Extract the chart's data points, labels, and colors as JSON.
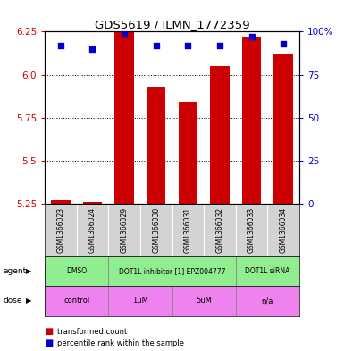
{
  "title": "GDS5619 / ILMN_1772359",
  "samples": [
    "GSM1366023",
    "GSM1366024",
    "GSM1366029",
    "GSM1366030",
    "GSM1366031",
    "GSM1366032",
    "GSM1366033",
    "GSM1366034"
  ],
  "bar_values": [
    5.27,
    5.26,
    6.25,
    5.93,
    5.84,
    6.05,
    6.22,
    6.12
  ],
  "percentile_values": [
    92,
    90,
    99,
    92,
    92,
    92,
    97,
    93
  ],
  "ylim": [
    5.25,
    6.25
  ],
  "yticks": [
    5.25,
    5.5,
    5.75,
    6.0,
    6.25
  ],
  "right_yticks": [
    0,
    25,
    50,
    75,
    100
  ],
  "right_yticklabels": [
    "0",
    "25",
    "50",
    "75",
    "100%"
  ],
  "bar_color": "#cc0000",
  "dot_color": "#0000cc",
  "bar_bottom": 5.25,
  "agent_groups": [
    {
      "label": "DMSO",
      "start": 0,
      "end": 2,
      "color": "#90ee90"
    },
    {
      "label": "DOT1L inhibitor [1] EPZ004777",
      "start": 2,
      "end": 6,
      "color": "#90ee90"
    },
    {
      "label": "DOT1L siRNA",
      "start": 6,
      "end": 8,
      "color": "#90ee90"
    }
  ],
  "dose_groups": [
    {
      "label": "control",
      "start": 0,
      "end": 2,
      "color": "#ee82ee"
    },
    {
      "label": "1uM",
      "start": 2,
      "end": 4,
      "color": "#ee82ee"
    },
    {
      "label": "5uM",
      "start": 4,
      "end": 6,
      "color": "#ee82ee"
    },
    {
      "label": "n/a",
      "start": 6,
      "end": 8,
      "color": "#ee82ee"
    }
  ],
  "legend_items": [
    {
      "color": "#cc0000",
      "label": "transformed count"
    },
    {
      "color": "#0000cc",
      "label": "percentile rank within the sample"
    }
  ],
  "left_tick_color": "#cc0000",
  "right_tick_color": "#0000cc",
  "sample_bg": "#d3d3d3"
}
